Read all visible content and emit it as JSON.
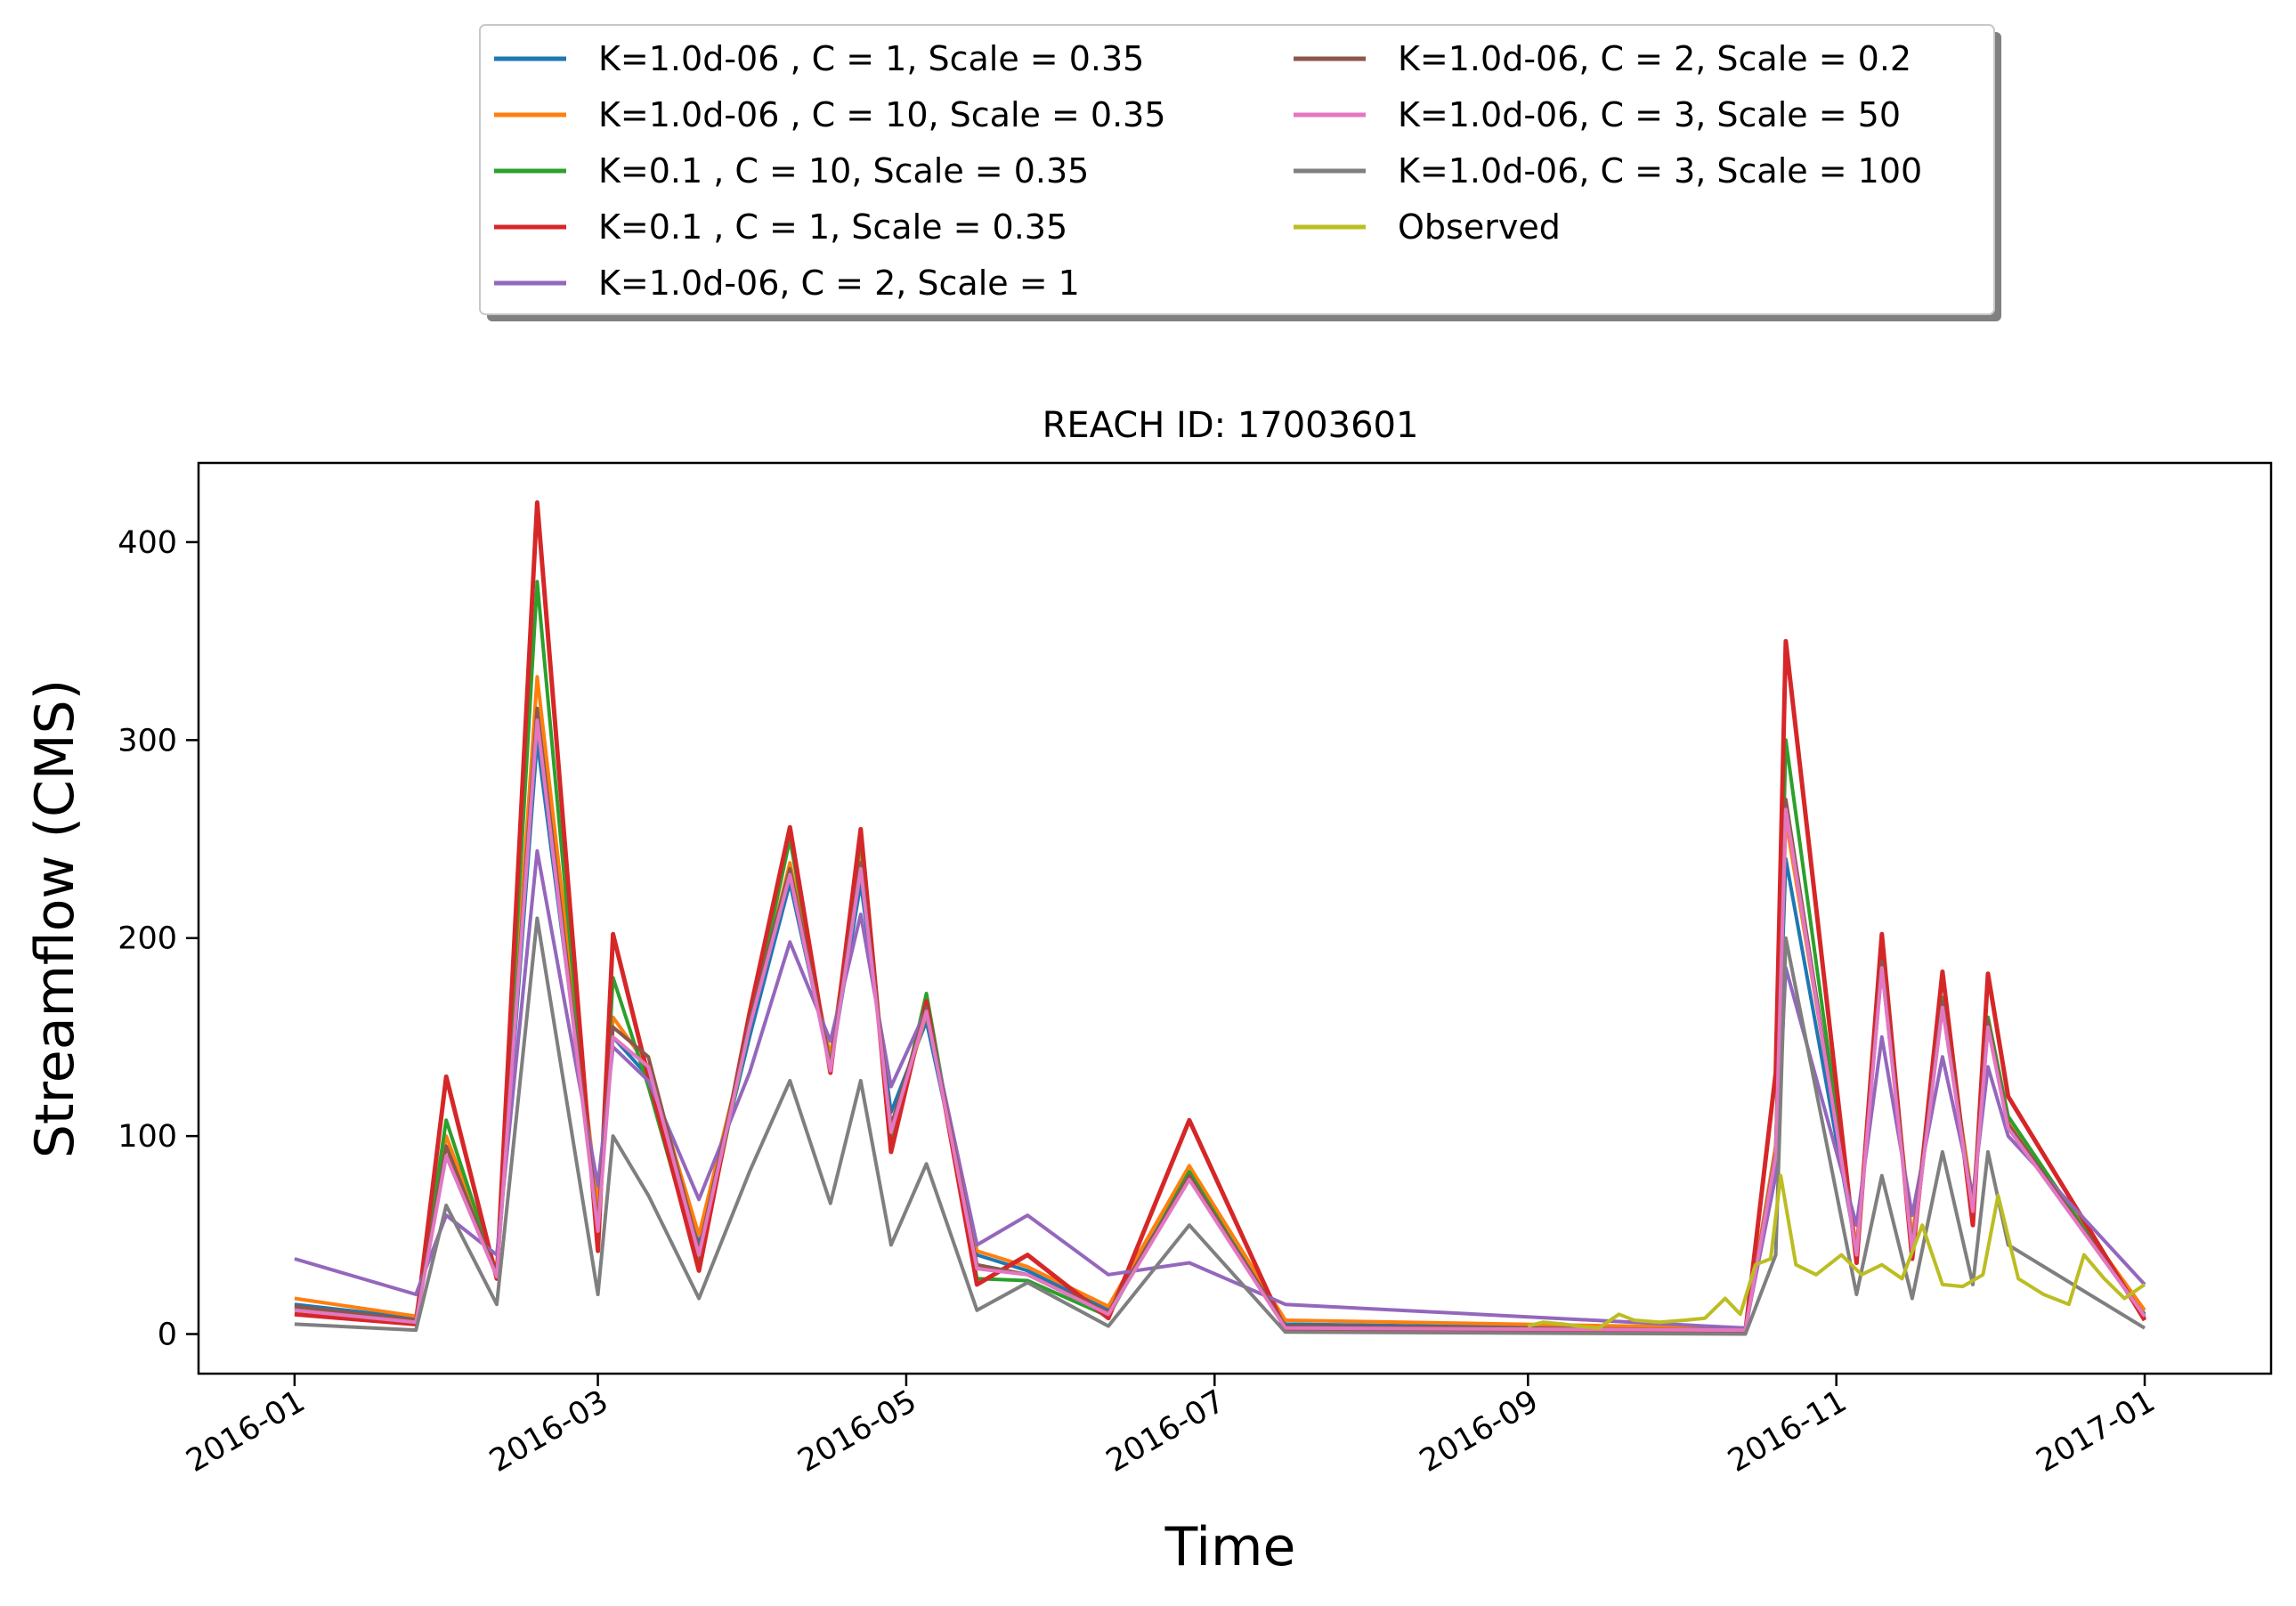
{
  "chart_data": {
    "type": "line",
    "title": "REACH ID: 17003601",
    "xlabel": "Time",
    "ylabel": "Streamflow (CMS)",
    "x_axis_type": "date",
    "xlim": [
      "2015-12-13",
      "2017-01-26"
    ],
    "ylim": [
      -20,
      440
    ],
    "x_ticks": [
      "2016-01-01",
      "2016-03-01",
      "2016-05-01",
      "2016-07-01",
      "2016-09-01",
      "2016-11-01",
      "2017-01-01"
    ],
    "x_tick_labels": [
      "2016-01",
      "2016-03",
      "2016-05",
      "2016-07",
      "2016-09",
      "2016-11",
      "2017-01"
    ],
    "y_ticks": [
      0,
      100,
      200,
      300,
      400
    ],
    "y_tick_labels": [
      "0",
      "100",
      "200",
      "300",
      "400"
    ],
    "grid": false,
    "legend_position": "top-center-outside",
    "legend_columns": 2,
    "series": [
      {
        "name": "K=1.0d-06 , C = 1, Scale = 0.35",
        "color": "#1f77b4",
        "x": [
          "2016-01-01",
          "2016-01-25",
          "2016-01-31",
          "2016-02-10",
          "2016-02-18",
          "2016-03-01",
          "2016-03-04",
          "2016-03-11",
          "2016-03-21",
          "2016-03-31",
          "2016-04-08",
          "2016-04-16",
          "2016-04-22",
          "2016-04-28",
          "2016-05-05",
          "2016-05-15",
          "2016-05-25",
          "2016-06-10",
          "2016-06-26",
          "2016-07-15",
          "2016-10-14",
          "2016-10-20",
          "2016-10-22",
          "2016-11-05",
          "2016-11-10",
          "2016-11-16",
          "2016-11-22",
          "2016-11-28",
          "2016-12-01",
          "2016-12-05",
          "2017-01-01"
        ],
        "y": [
          15,
          8,
          90,
          30,
          300,
          62,
          150,
          130,
          45,
          150,
          228,
          135,
          228,
          112,
          158,
          40,
          32,
          12,
          80,
          5,
          2,
          95,
          240,
          42,
          185,
          45,
          165,
          65,
          155,
          105,
          10
        ]
      },
      {
        "name": "K=1.0d-06 , C = 10, Scale = 0.35",
        "color": "#ff7f0e",
        "x": [
          "2016-01-01",
          "2016-01-25",
          "2016-01-31",
          "2016-02-10",
          "2016-02-18",
          "2016-03-01",
          "2016-03-04",
          "2016-03-11",
          "2016-03-21",
          "2016-03-31",
          "2016-04-08",
          "2016-04-16",
          "2016-04-22",
          "2016-04-28",
          "2016-05-05",
          "2016-05-15",
          "2016-05-25",
          "2016-06-10",
          "2016-06-26",
          "2016-07-15",
          "2016-10-14",
          "2016-10-20",
          "2016-10-22",
          "2016-11-05",
          "2016-11-10",
          "2016-11-16",
          "2016-11-22",
          "2016-11-28",
          "2016-12-01",
          "2016-12-05",
          "2017-01-01"
        ],
        "y": [
          18,
          9,
          100,
          32,
          332,
          65,
          160,
          135,
          50,
          155,
          238,
          140,
          245,
          100,
          162,
          42,
          34,
          14,
          85,
          7,
          3,
          95,
          260,
          44,
          190,
          48,
          170,
          67,
          160,
          108,
          12
        ]
      },
      {
        "name": "K=0.1 , C = 10, Scale = 0.35",
        "color": "#2ca02c",
        "x": [
          "2016-01-01",
          "2016-01-25",
          "2016-01-31",
          "2016-02-10",
          "2016-02-18",
          "2016-03-01",
          "2016-03-04",
          "2016-03-11",
          "2016-03-21",
          "2016-03-31",
          "2016-04-08",
          "2016-04-16",
          "2016-04-22",
          "2016-04-28",
          "2016-05-05",
          "2016-05-15",
          "2016-05-25",
          "2016-06-10",
          "2016-06-26",
          "2016-07-15",
          "2016-10-14",
          "2016-10-20",
          "2016-10-22",
          "2016-11-05",
          "2016-11-10",
          "2016-11-16",
          "2016-11-22",
          "2016-11-28",
          "2016-12-01",
          "2016-12-05",
          "2017-01-01"
        ],
        "y": [
          13,
          6,
          108,
          30,
          380,
          45,
          180,
          125,
          35,
          155,
          250,
          135,
          250,
          95,
          172,
          28,
          27,
          9,
          82,
          3,
          1,
          90,
          300,
          38,
          195,
          40,
          170,
          60,
          160,
          110,
          8
        ]
      },
      {
        "name": "K=0.1 , C = 1, Scale = 0.35",
        "color": "#d62728",
        "x": [
          "2016-01-01",
          "2016-01-25",
          "2016-01-31",
          "2016-02-10",
          "2016-02-18",
          "2016-03-01",
          "2016-03-04",
          "2016-03-11",
          "2016-03-21",
          "2016-03-31",
          "2016-04-08",
          "2016-04-16",
          "2016-04-22",
          "2016-04-28",
          "2016-05-05",
          "2016-05-15",
          "2016-05-25",
          "2016-06-10",
          "2016-06-26",
          "2016-07-15",
          "2016-10-14",
          "2016-10-20",
          "2016-10-22",
          "2016-11-05",
          "2016-11-10",
          "2016-11-16",
          "2016-11-22",
          "2016-11-28",
          "2016-12-01",
          "2016-12-05",
          "2017-01-01"
        ],
        "y": [
          10,
          5,
          130,
          28,
          420,
          42,
          202,
          130,
          32,
          162,
          256,
          132,
          255,
          92,
          168,
          25,
          40,
          8,
          108,
          2,
          1,
          132,
          350,
          36,
          202,
          38,
          183,
          55,
          182,
          120,
          7
        ]
      },
      {
        "name": "K=1.0d-06, C = 2, Scale = 1",
        "color": "#9467bd",
        "x": [
          "2016-01-01",
          "2016-01-25",
          "2016-01-31",
          "2016-02-10",
          "2016-02-18",
          "2016-03-01",
          "2016-03-04",
          "2016-03-11",
          "2016-03-21",
          "2016-03-31",
          "2016-04-08",
          "2016-04-16",
          "2016-04-22",
          "2016-04-28",
          "2016-05-05",
          "2016-05-15",
          "2016-05-25",
          "2016-06-10",
          "2016-06-26",
          "2016-07-15",
          "2016-10-14",
          "2016-10-20",
          "2016-10-22",
          "2016-11-05",
          "2016-11-10",
          "2016-11-16",
          "2016-11-22",
          "2016-11-28",
          "2016-12-01",
          "2016-12-05",
          "2017-01-01"
        ],
        "y": [
          38,
          20,
          60,
          40,
          244,
          75,
          145,
          128,
          68,
          132,
          198,
          148,
          212,
          125,
          164,
          45,
          60,
          30,
          36,
          15,
          3,
          80,
          185,
          55,
          150,
          60,
          140,
          70,
          135,
          100,
          25
        ]
      },
      {
        "name": "K=1.0d-06, C = 2, Scale = 0.2",
        "color": "#8c564b",
        "x": [
          "2016-01-01",
          "2016-01-25",
          "2016-01-31",
          "2016-02-10",
          "2016-02-18",
          "2016-03-01",
          "2016-03-04",
          "2016-03-11",
          "2016-03-21",
          "2016-03-31",
          "2016-04-08",
          "2016-04-16",
          "2016-04-22",
          "2016-04-28",
          "2016-05-05",
          "2016-05-15",
          "2016-05-25",
          "2016-06-10",
          "2016-06-26",
          "2016-07-15",
          "2016-10-14",
          "2016-10-20",
          "2016-10-22",
          "2016-11-05",
          "2016-11-10",
          "2016-11-16",
          "2016-11-22",
          "2016-11-28",
          "2016-12-01",
          "2016-12-05",
          "2017-01-01"
        ],
        "y": [
          14,
          7,
          95,
          30,
          316,
          55,
          155,
          140,
          42,
          158,
          235,
          135,
          238,
          105,
          165,
          35,
          30,
          11,
          80,
          4,
          2,
          92,
          270,
          40,
          188,
          44,
          168,
          64,
          158,
          106,
          9
        ]
      },
      {
        "name": "K=1.0d-06, C = 3, Scale = 50",
        "color": "#e377c2",
        "x": [
          "2016-01-01",
          "2016-01-25",
          "2016-01-31",
          "2016-02-10",
          "2016-02-18",
          "2016-03-01",
          "2016-03-04",
          "2016-03-11",
          "2016-03-21",
          "2016-03-31",
          "2016-04-08",
          "2016-04-16",
          "2016-04-22",
          "2016-04-28",
          "2016-05-05",
          "2016-05-15",
          "2016-05-25",
          "2016-06-10",
          "2016-06-26",
          "2016-07-15",
          "2016-10-14",
          "2016-10-20",
          "2016-10-22",
          "2016-11-05",
          "2016-11-10",
          "2016-11-16",
          "2016-11-22",
          "2016-11-28",
          "2016-12-01",
          "2016-12-05",
          "2017-01-01"
        ],
        "y": [
          12,
          6,
          90,
          29,
          310,
          52,
          150,
          135,
          40,
          155,
          232,
          133,
          235,
          102,
          163,
          33,
          30,
          10,
          78,
          3,
          2,
          90,
          265,
          40,
          185,
          42,
          165,
          62,
          155,
          104,
          9
        ]
      },
      {
        "name": "K=1.0d-06, C = 3, Scale = 100",
        "color": "#7f7f7f",
        "x": [
          "2016-01-01",
          "2016-01-25",
          "2016-01-31",
          "2016-02-10",
          "2016-02-18",
          "2016-03-01",
          "2016-03-04",
          "2016-03-11",
          "2016-03-21",
          "2016-03-31",
          "2016-04-08",
          "2016-04-16",
          "2016-04-22",
          "2016-04-28",
          "2016-05-05",
          "2016-05-15",
          "2016-05-25",
          "2016-06-10",
          "2016-06-26",
          "2016-07-15",
          "2016-10-14",
          "2016-10-20",
          "2016-10-22",
          "2016-11-05",
          "2016-11-10",
          "2016-11-16",
          "2016-11-22",
          "2016-11-28",
          "2016-12-01",
          "2016-12-05",
          "2017-01-01"
        ],
        "y": [
          5,
          2,
          65,
          15,
          210,
          20,
          100,
          70,
          18,
          82,
          128,
          66,
          128,
          45,
          86,
          12,
          26,
          4,
          55,
          1,
          0,
          40,
          200,
          20,
          80,
          18,
          92,
          25,
          92,
          45,
          3
        ]
      },
      {
        "name": "Observed",
        "color": "#bcbd22",
        "x": [
          "2016-09-01",
          "2016-09-04",
          "2016-09-08",
          "2016-09-11",
          "2016-09-15",
          "2016-09-19",
          "2016-09-22",
          "2016-09-27",
          "2016-10-02",
          "2016-10-06",
          "2016-10-10",
          "2016-10-13",
          "2016-10-16",
          "2016-10-19",
          "2016-10-21",
          "2016-10-24",
          "2016-10-28",
          "2016-11-02",
          "2016-11-06",
          "2016-11-10",
          "2016-11-14",
          "2016-11-18",
          "2016-11-22",
          "2016-11-26",
          "2016-11-30",
          "2016-12-03",
          "2016-12-07",
          "2016-12-12",
          "2016-12-17",
          "2016-12-20",
          "2016-12-24",
          "2016-12-28",
          "2017-01-01"
        ],
        "y": [
          4,
          6,
          5,
          4,
          3,
          10,
          7,
          6,
          7,
          8,
          18,
          10,
          35,
          38,
          80,
          35,
          30,
          40,
          30,
          35,
          28,
          55,
          25,
          24,
          30,
          70,
          28,
          20,
          15,
          40,
          28,
          18,
          25
        ]
      }
    ]
  }
}
